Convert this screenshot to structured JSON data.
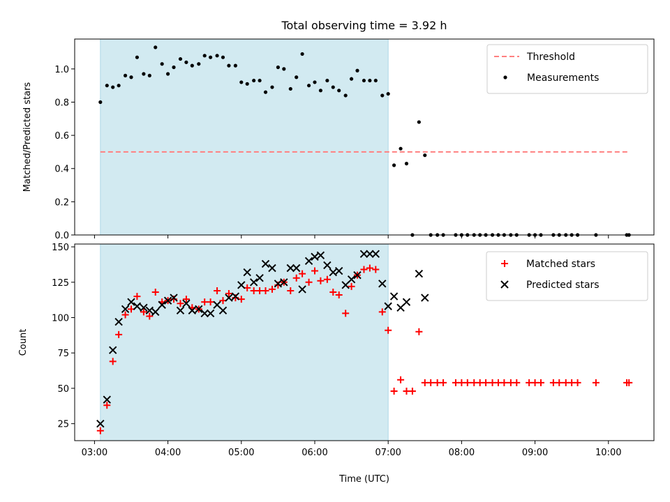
{
  "chart_data": [
    {
      "type": "scatter",
      "title": "Total observing time = 3.92 h",
      "ylabel": "Matched/Predicted stars",
      "xlabel": "",
      "x_unit": "hours UTC",
      "xlim": [
        2.73,
        10.62
      ],
      "ylim": [
        0.0,
        1.18
      ],
      "yticks": [
        0.0,
        0.2,
        0.4,
        0.6,
        0.8,
        1.0
      ],
      "ytick_labels": [
        "0.0",
        "0.2",
        "0.4",
        "0.6",
        "0.8",
        "1.0"
      ],
      "grid": false,
      "legend_position": "top-right",
      "shaded_span": {
        "x": [
          3.08,
          7.0
        ],
        "color": "#add8e6"
      },
      "threshold": {
        "name": "Threshold",
        "y": 0.5,
        "x_range": [
          3.08,
          10.28
        ],
        "color": "#ff8080"
      },
      "series": [
        {
          "name": "Measurements",
          "color": "#000000",
          "marker": "dot",
          "x": [
            3.08,
            3.17,
            3.25,
            3.33,
            3.42,
            3.5,
            3.58,
            3.67,
            3.75,
            3.83,
            3.92,
            4.0,
            4.08,
            4.17,
            4.25,
            4.33,
            4.42,
            4.5,
            4.58,
            4.67,
            4.75,
            4.83,
            4.92,
            5.0,
            5.08,
            5.17,
            5.25,
            5.33,
            5.42,
            5.5,
            5.58,
            5.67,
            5.75,
            5.83,
            5.92,
            6.0,
            6.08,
            6.17,
            6.25,
            6.33,
            6.42,
            6.5,
            6.58,
            6.67,
            6.75,
            6.83,
            6.92,
            7.0,
            7.08,
            7.17,
            7.25,
            7.33,
            7.42,
            7.5,
            7.58,
            7.67,
            7.75,
            7.92,
            8.0,
            8.08,
            8.17,
            8.25,
            8.33,
            8.42,
            8.5,
            8.58,
            8.67,
            8.75,
            8.92,
            9.0,
            9.08,
            9.25,
            9.33,
            9.42,
            9.5,
            9.58,
            9.83,
            10.25,
            10.28
          ],
          "y": [
            0.8,
            0.9,
            0.89,
            0.9,
            0.96,
            0.95,
            1.07,
            0.97,
            0.96,
            1.13,
            1.03,
            0.97,
            1.01,
            1.06,
            1.04,
            1.02,
            1.03,
            1.08,
            1.07,
            1.08,
            1.07,
            1.02,
            1.02,
            0.92,
            0.91,
            0.93,
            0.93,
            0.86,
            0.89,
            1.01,
            1.0,
            0.88,
            0.95,
            1.09,
            0.9,
            0.92,
            0.87,
            0.93,
            0.89,
            0.87,
            0.84,
            0.94,
            0.99,
            0.93,
            0.93,
            0.93,
            0.84,
            0.85,
            0.42,
            0.52,
            0.43,
            0.0,
            0.68,
            0.48,
            0.0,
            0.0,
            0.0,
            0.0,
            0.0,
            0.0,
            0.0,
            0.0,
            0.0,
            0.0,
            0.0,
            0.0,
            0.0,
            0.0,
            0.0,
            0.0,
            0.0,
            0.0,
            0.0,
            0.0,
            0.0,
            0.0,
            0.0,
            0.0,
            0.0
          ]
        }
      ]
    },
    {
      "type": "scatter",
      "title": "",
      "ylabel": "Count",
      "xlabel": "Time (UTC)",
      "x_unit": "hours UTC",
      "xlim": [
        2.73,
        10.62
      ],
      "xticks": [
        3,
        4,
        5,
        6,
        7,
        8,
        9,
        10
      ],
      "xtick_labels": [
        "03:00",
        "04:00",
        "05:00",
        "06:00",
        "07:00",
        "08:00",
        "09:00",
        "10:00"
      ],
      "ylim": [
        13,
        152
      ],
      "yticks": [
        25,
        50,
        75,
        100,
        125,
        150
      ],
      "ytick_labels": [
        "25",
        "50",
        "75",
        "100",
        "125",
        "150"
      ],
      "grid": false,
      "legend_position": "top-right",
      "shaded_span": {
        "x": [
          3.08,
          7.0
        ],
        "color": "#add8e6"
      },
      "series": [
        {
          "name": "Matched stars",
          "color": "#ff0000",
          "marker": "plus",
          "x": [
            3.08,
            3.17,
            3.25,
            3.33,
            3.42,
            3.5,
            3.58,
            3.67,
            3.75,
            3.83,
            3.92,
            4.0,
            4.08,
            4.17,
            4.25,
            4.33,
            4.42,
            4.5,
            4.58,
            4.67,
            4.75,
            4.83,
            4.92,
            5.0,
            5.08,
            5.17,
            5.25,
            5.33,
            5.42,
            5.5,
            5.58,
            5.67,
            5.75,
            5.83,
            5.92,
            6.0,
            6.08,
            6.17,
            6.25,
            6.33,
            6.42,
            6.5,
            6.58,
            6.67,
            6.75,
            6.83,
            6.92,
            7.0,
            7.08,
            7.17,
            7.25,
            7.33,
            7.42,
            7.5,
            7.58,
            7.67,
            7.75,
            7.92,
            8.0,
            8.08,
            8.17,
            8.25,
            8.33,
            8.42,
            8.5,
            8.58,
            8.67,
            8.75,
            8.92,
            9.0,
            9.08,
            9.25,
            9.33,
            9.42,
            9.5,
            9.58,
            9.83,
            10.25,
            10.28
          ],
          "y": [
            20,
            38,
            69,
            88,
            102,
            106,
            115,
            104,
            101,
            118,
            111,
            112,
            113,
            110,
            113,
            107,
            106,
            111,
            111,
            119,
            112,
            117,
            114,
            113,
            121,
            119,
            119,
            119,
            120,
            123,
            125,
            119,
            128,
            131,
            125,
            133,
            126,
            127,
            118,
            116,
            103,
            122,
            130,
            134,
            135,
            134,
            104,
            91,
            48,
            56,
            48,
            48,
            90,
            54,
            54,
            54,
            54,
            54,
            54,
            54,
            54,
            54,
            54,
            54,
            54,
            54,
            54,
            54,
            54,
            54,
            54,
            54,
            54,
            54,
            54,
            54,
            54,
            54,
            54
          ]
        },
        {
          "name": "Predicted stars",
          "color": "#000000",
          "marker": "x",
          "x": [
            3.08,
            3.17,
            3.25,
            3.33,
            3.42,
            3.5,
            3.58,
            3.67,
            3.75,
            3.83,
            3.92,
            4.0,
            4.08,
            4.17,
            4.25,
            4.33,
            4.42,
            4.5,
            4.58,
            4.67,
            4.75,
            4.83,
            4.92,
            5.0,
            5.08,
            5.17,
            5.25,
            5.33,
            5.42,
            5.5,
            5.58,
            5.67,
            5.75,
            5.83,
            5.92,
            6.0,
            6.08,
            6.17,
            6.25,
            6.33,
            6.42,
            6.5,
            6.58,
            6.67,
            6.75,
            6.83,
            6.92,
            7.0,
            7.08,
            7.17,
            7.25,
            7.42,
            7.5
          ],
          "y": [
            25,
            42,
            77,
            97,
            106,
            111,
            108,
            107,
            105,
            104,
            109,
            112,
            114,
            105,
            110,
            105,
            106,
            103,
            103,
            109,
            105,
            114,
            115,
            123,
            132,
            125,
            128,
            138,
            135,
            124,
            125,
            135,
            135,
            120,
            140,
            143,
            144,
            137,
            132,
            133,
            123,
            127,
            130,
            145,
            145,
            145,
            124,
            108,
            115,
            107,
            111,
            131,
            114
          ]
        }
      ]
    }
  ]
}
